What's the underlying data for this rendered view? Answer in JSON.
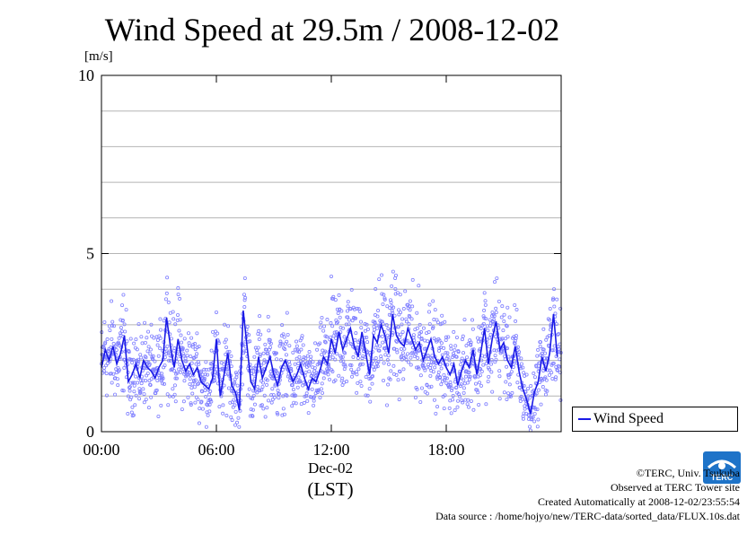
{
  "chart_data": {
    "type": "line",
    "title": "Wind Speed at 29.5m / 2008-12-02",
    "ylabel": "[m/s]",
    "ylim": [
      0,
      10
    ],
    "yticks": [
      "0",
      "5",
      "10"
    ],
    "xlim_hours": [
      0,
      24
    ],
    "xticks": [
      "00:00",
      "06:00",
      "12:00",
      "18:00"
    ],
    "xtick_hours": [
      0,
      6,
      12,
      18
    ],
    "x_date_label": "Dec-02",
    "x_timezone_label": "(LST)",
    "grid": true,
    "legend": "right",
    "series": [
      {
        "name": "Wind Speed",
        "color": "#1a1ae6",
        "scatter_color": "#8080ff",
        "x_hours": [
          0.0,
          0.2,
          0.4,
          0.6,
          0.8,
          1.0,
          1.2,
          1.4,
          1.6,
          1.8,
          2.0,
          2.2,
          2.4,
          2.6,
          2.8,
          3.0,
          3.2,
          3.4,
          3.6,
          3.8,
          4.0,
          4.2,
          4.4,
          4.6,
          4.8,
          5.0,
          5.2,
          5.4,
          5.6,
          5.8,
          6.0,
          6.2,
          6.4,
          6.6,
          6.8,
          7.0,
          7.2,
          7.4,
          7.6,
          7.8,
          8.0,
          8.2,
          8.4,
          8.6,
          8.8,
          9.0,
          9.2,
          9.4,
          9.6,
          9.8,
          10.0,
          10.2,
          10.4,
          10.6,
          10.8,
          11.0,
          11.2,
          11.4,
          11.6,
          11.8,
          12.0,
          12.2,
          12.4,
          12.6,
          12.8,
          13.0,
          13.2,
          13.4,
          13.6,
          13.8,
          14.0,
          14.2,
          14.4,
          14.6,
          14.8,
          15.0,
          15.2,
          15.4,
          15.6,
          15.8,
          16.0,
          16.2,
          16.4,
          16.6,
          16.8,
          17.0,
          17.2,
          17.4,
          17.6,
          17.8,
          18.0,
          18.2,
          18.4,
          18.6,
          18.8,
          19.0,
          19.2,
          19.4,
          19.6,
          19.8,
          20.0,
          20.2,
          20.4,
          20.6,
          20.8,
          21.0,
          21.2,
          21.4,
          21.6,
          21.8,
          22.0,
          22.2,
          22.4,
          22.6,
          22.8,
          23.0,
          23.2,
          23.4,
          23.6,
          23.8
        ],
        "values": [
          1.8,
          2.3,
          2.0,
          2.4,
          1.9,
          2.2,
          2.7,
          1.4,
          1.6,
          1.9,
          1.5,
          2.0,
          1.8,
          1.7,
          1.5,
          1.8,
          2.0,
          3.2,
          2.4,
          1.8,
          2.6,
          2.0,
          1.7,
          1.9,
          1.6,
          1.8,
          1.4,
          1.3,
          1.2,
          1.5,
          2.6,
          1.0,
          1.6,
          2.2,
          1.3,
          1.1,
          0.6,
          3.4,
          2.4,
          1.4,
          1.2,
          2.1,
          1.5,
          1.8,
          2.1,
          1.6,
          1.3,
          1.8,
          2.0,
          1.7,
          1.4,
          1.6,
          1.9,
          1.5,
          1.2,
          1.5,
          1.4,
          1.7,
          2.1,
          1.9,
          2.6,
          2.2,
          2.8,
          2.3,
          2.6,
          2.9,
          2.4,
          2.1,
          2.8,
          2.2,
          1.6,
          2.7,
          2.5,
          3.0,
          2.7,
          2.2,
          3.3,
          2.7,
          2.5,
          2.4,
          2.9,
          2.6,
          2.3,
          2.5,
          2.0,
          2.3,
          2.6,
          2.1,
          1.9,
          2.1,
          1.8,
          1.6,
          1.9,
          1.3,
          1.7,
          2.0,
          1.8,
          2.3,
          1.6,
          2.2,
          2.9,
          1.9,
          2.6,
          3.1,
          2.3,
          2.5,
          2.0,
          1.8,
          2.4,
          1.7,
          1.2,
          0.9,
          0.5,
          1.1,
          1.4,
          2.1,
          1.7,
          2.2,
          3.3,
          2.1
        ]
      }
    ]
  },
  "legend": {
    "label": "Wind Speed"
  },
  "credits": {
    "line1": "©TERC, Univ. Tsukuba",
    "line2": "Observed at TERC Tower site",
    "line3": "Created Automatically at 2008-12-02/23:55:54",
    "line4": "Data source : /home/hojyo/new/TERC-data/sorted_data/FLUX.10s.dat"
  },
  "logo": {
    "text": "TERC"
  }
}
